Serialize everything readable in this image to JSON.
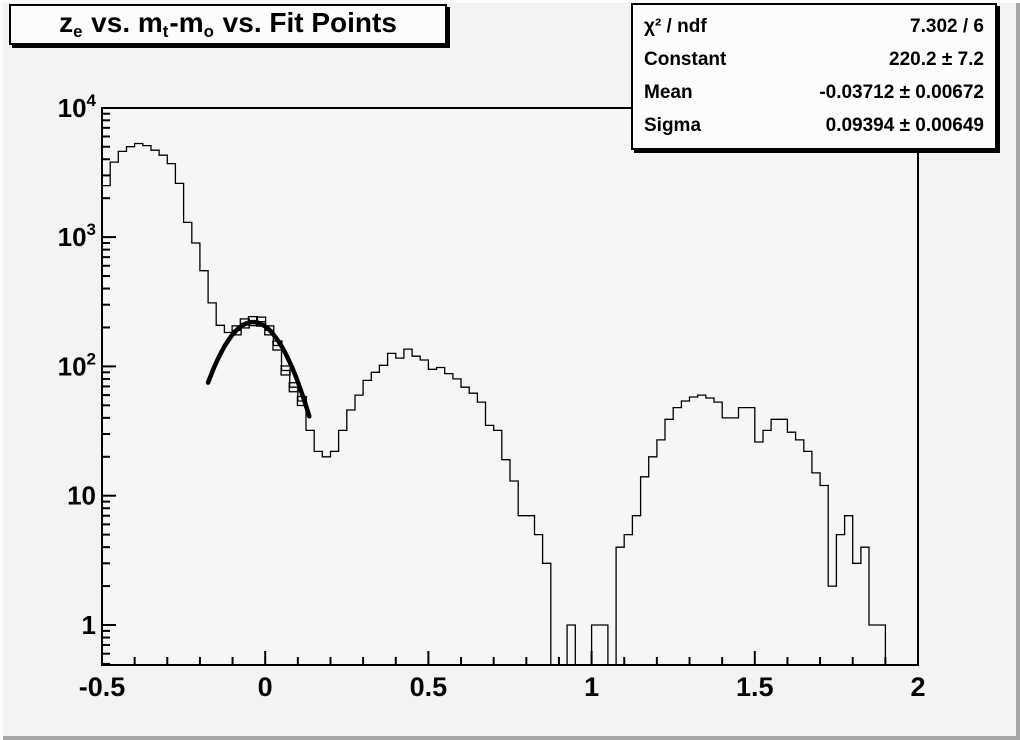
{
  "title": {
    "text": "z_e vs. m_t-m_o vs. Fit Points",
    "parts": [
      {
        "t": "z"
      },
      {
        "t": "e",
        "sub": true
      },
      {
        "t": " vs. m"
      },
      {
        "t": "t",
        "sub": true
      },
      {
        "t": "-m"
      },
      {
        "t": "o",
        "sub": true
      },
      {
        "t": " vs. Fit Points"
      }
    ]
  },
  "stats": {
    "rows": [
      {
        "label": "χ² / ndf",
        "value": "7.302 / 6"
      },
      {
        "label": "Constant",
        "value": "220.2 ± 7.2"
      },
      {
        "label": "Mean",
        "value": "-0.03712 ± 0.00672"
      },
      {
        "label": "Sigma",
        "value": "0.09394 ± 0.00649"
      }
    ]
  },
  "chart_data": {
    "type": "bar",
    "style": "step-histogram",
    "title": "z_e vs. m_t-m_o vs. Fit Points",
    "xlabel": "",
    "ylabel": "",
    "yscale": "log",
    "xlim": [
      -0.5,
      2
    ],
    "ylim": [
      0.5,
      10000
    ],
    "grid": false,
    "x_ticks": [
      {
        "value": -0.5,
        "label": "-0.5"
      },
      {
        "value": 0,
        "label": "0"
      },
      {
        "value": 0.5,
        "label": "0.5"
      },
      {
        "value": 1,
        "label": "1"
      },
      {
        "value": 1.5,
        "label": "1.5"
      },
      {
        "value": 2,
        "label": "2"
      }
    ],
    "x_minor_step": 0.1,
    "y_ticks": [
      {
        "value": 1,
        "label": "1"
      },
      {
        "value": 10,
        "label": "10"
      },
      {
        "value": 100,
        "label": "10",
        "exp": "2"
      },
      {
        "value": 1000,
        "label": "10",
        "exp": "3"
      },
      {
        "value": 10000,
        "label": "10",
        "exp": "4"
      }
    ],
    "bin_start": -0.5,
    "bin_width": 0.025,
    "values": [
      2500,
      3800,
      4600,
      5000,
      5300,
      5100,
      4700,
      4300,
      3700,
      2600,
      1300,
      900,
      550,
      310,
      208,
      183,
      190,
      215,
      224,
      222,
      190,
      145,
      93,
      69,
      54,
      32,
      22,
      20,
      22,
      32,
      46,
      60,
      78,
      90,
      102,
      126,
      116,
      136,
      120,
      112,
      95,
      98,
      88,
      80,
      69,
      62,
      53,
      35,
      32,
      19,
      13,
      7,
      7,
      5,
      3,
      0,
      0,
      1,
      0,
      0,
      1,
      1,
      0,
      4,
      5,
      7,
      14,
      20,
      27,
      39,
      48,
      54,
      58,
      60,
      57,
      53,
      40,
      40,
      48,
      48,
      26,
      32,
      39,
      39,
      31,
      27,
      22,
      15,
      12,
      2,
      5,
      7,
      3,
      4,
      1,
      1,
      0,
      0,
      0,
      0
    ],
    "fit": {
      "type": "gaussian",
      "constant": 220.2,
      "mean": -0.03712,
      "sigma": 0.09394,
      "range": [
        -0.175,
        0.135
      ],
      "color": "#000000"
    },
    "fit_points": {
      "marker": "open-square",
      "x": [
        -0.0875,
        -0.0625,
        -0.0375,
        -0.0125,
        0.0125,
        0.0375,
        0.0625,
        0.0875,
        0.1125
      ],
      "y": [
        190,
        215,
        224,
        222,
        190,
        145,
        93,
        69,
        54
      ]
    },
    "colors": {
      "line": "#000000",
      "background": "#f3f3f1",
      "frame": "#f6f6f4",
      "box_fill": "#fcfcfa"
    },
    "legend": null
  }
}
